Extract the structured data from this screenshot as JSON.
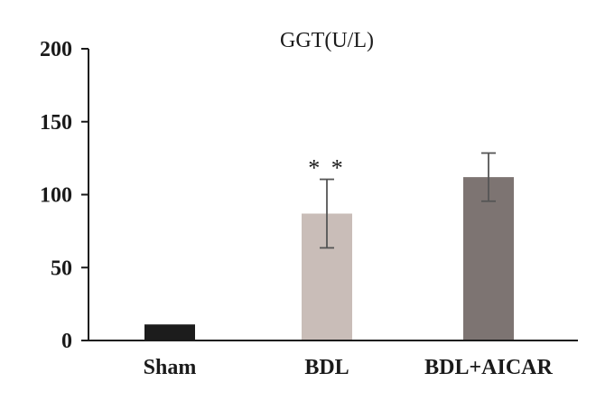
{
  "chart_data": {
    "type": "bar",
    "title": "GGT(U/L)",
    "xlabel": "",
    "ylabel": "",
    "categories": [
      "Sham",
      "BDL",
      "BDL+AICAR"
    ],
    "values": [
      11,
      87,
      112
    ],
    "error": [
      0.5,
      23.5,
      16.5
    ],
    "colors": [
      "#1c1c1c",
      "#c9bdb8",
      "#7d7472"
    ],
    "annotations": [
      {
        "category": "BDL",
        "text": "* *"
      }
    ],
    "ylim": [
      0,
      200
    ],
    "yticks": [
      0,
      50,
      100,
      150,
      200
    ],
    "grid": false,
    "legend": "none"
  }
}
